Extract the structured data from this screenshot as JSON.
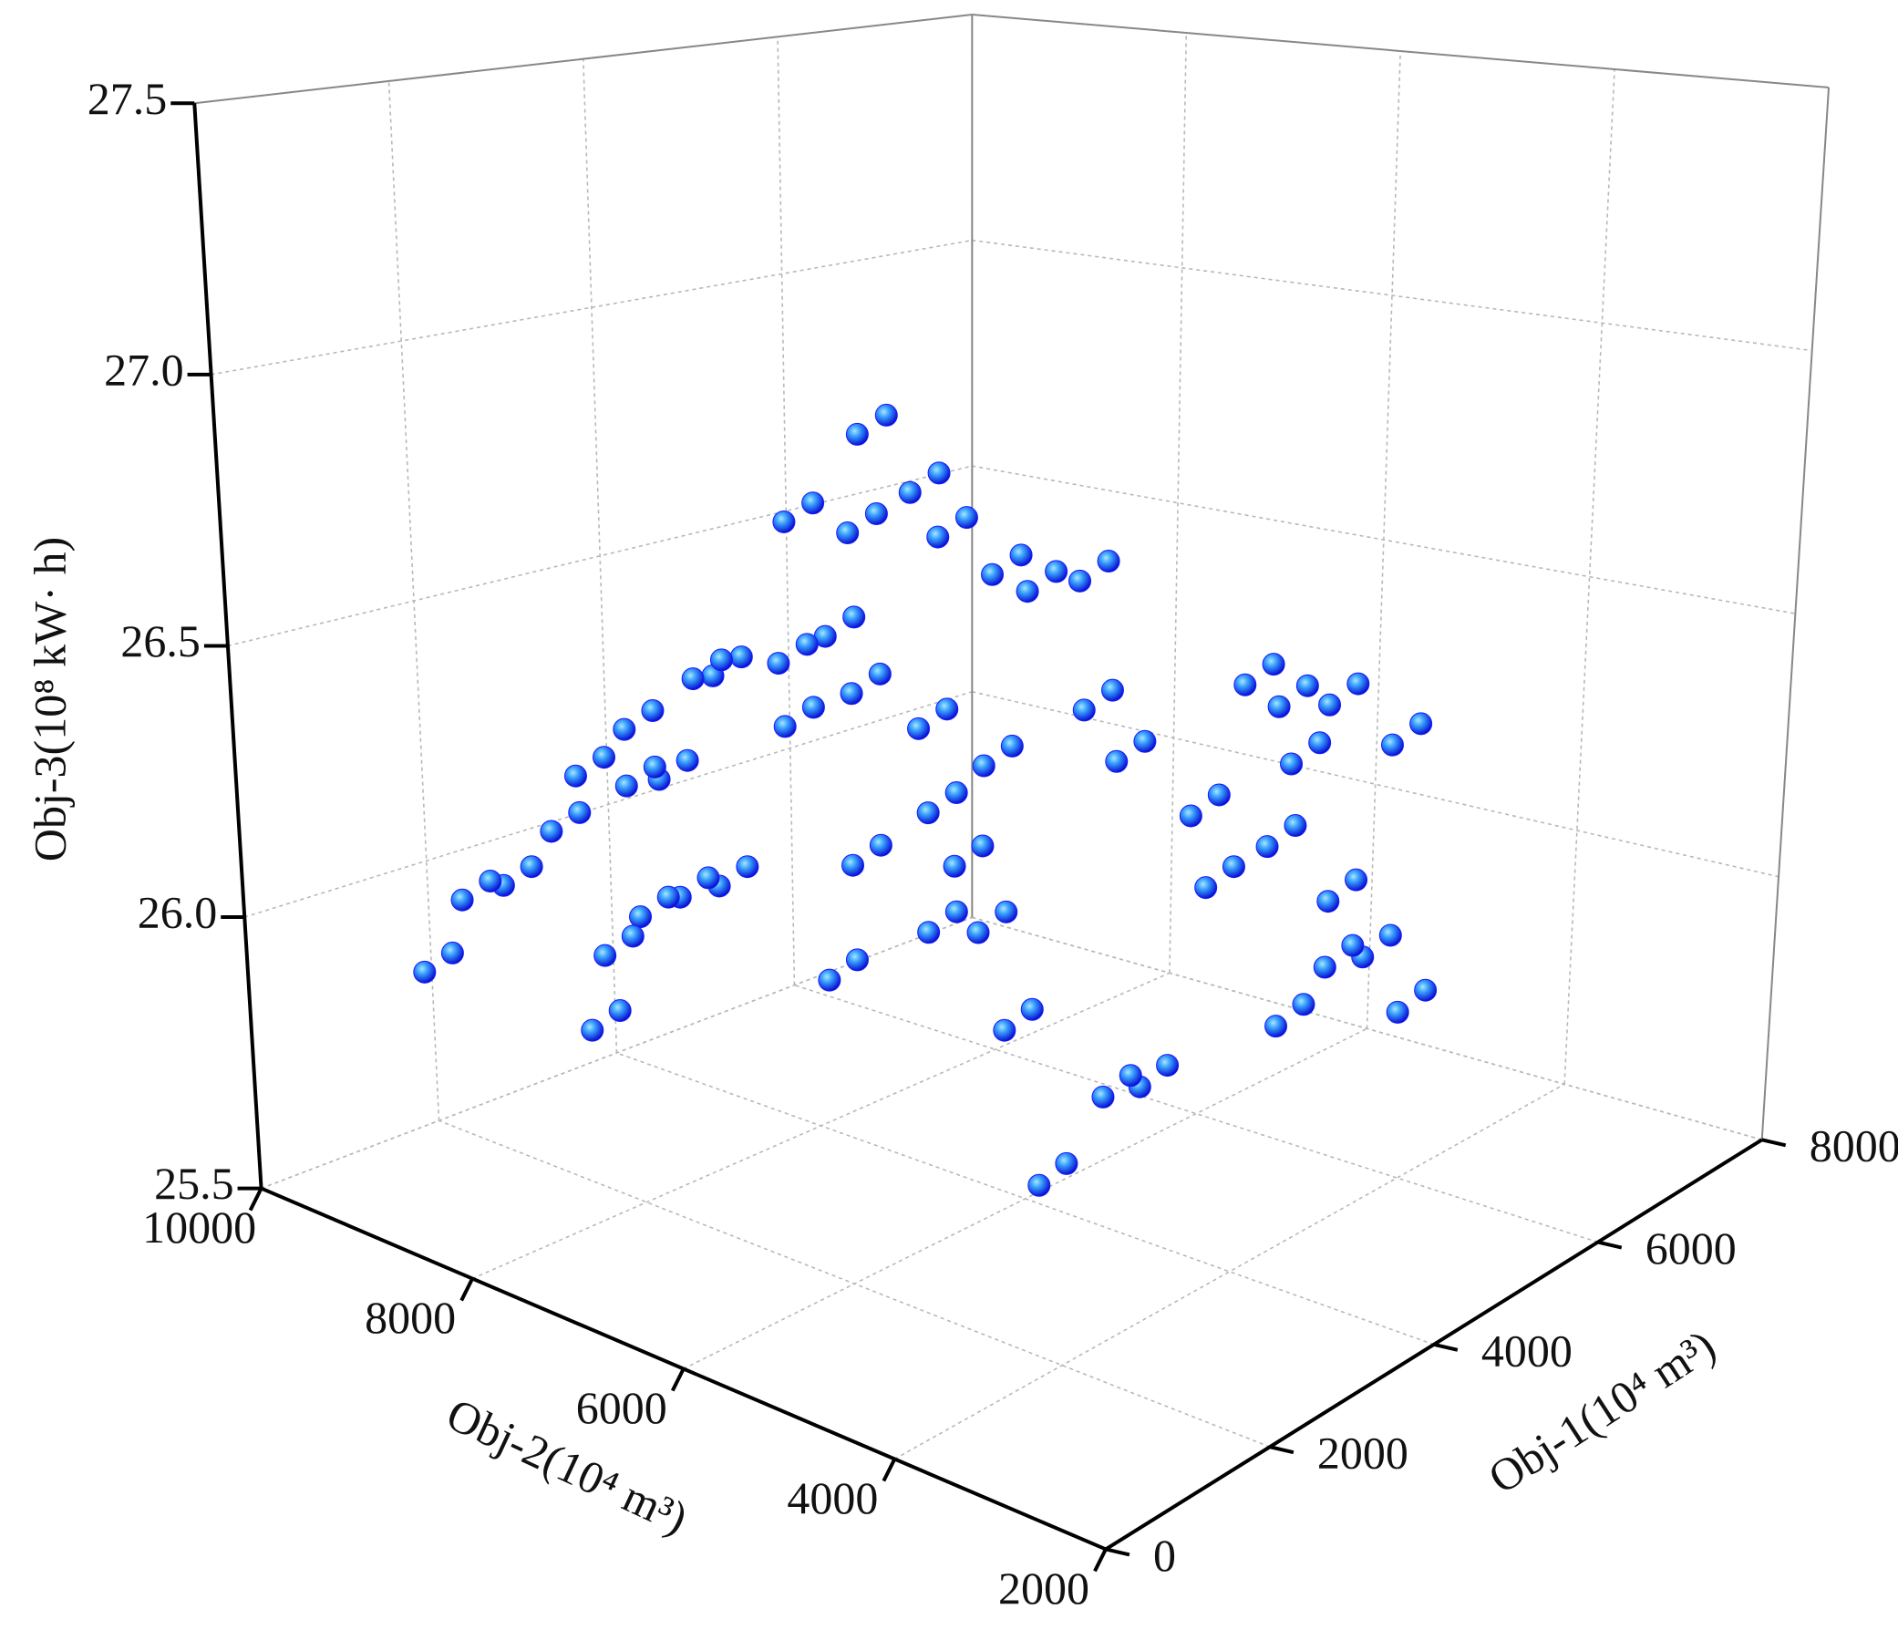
{
  "chart_data": {
    "type": "scatter3d",
    "x_label": "Obj-1(10⁴ m³)",
    "y_label": "Obj-2(10⁴ m³)",
    "z_label": "Obj-3(10⁸ kW· h)",
    "xlim": [
      0,
      8000
    ],
    "ylim": [
      2000,
      10000
    ],
    "zlim": [
      25.5,
      27.5
    ],
    "xticks": [
      0,
      2000,
      4000,
      6000,
      8000
    ],
    "yticks": [
      2000,
      4000,
      6000,
      8000,
      10000
    ],
    "zticks": [
      25.5,
      {
        "value": 26,
        "label": "26.0"
      },
      26.5,
      {
        "value": 27,
        "label": "27.0"
      },
      27.5
    ],
    "grid": true,
    "color": "#1a1aff",
    "x": [
      175,
      670,
      1140,
      1410,
      1570,
      1700,
      1960,
      2160,
      2740,
      2450,
      2340,
      2210,
      2420,
      2790,
      3410,
      3690,
      3240,
      4360,
      4550,
      4550,
      4550,
      5090,
      3950,
      4700,
      4650,
      4970,
      4790,
      5260,
      4520,
      3500,
      3820,
      2740,
      3190,
      2860,
      2620,
      2240,
      2430,
      2760,
      2920,
      1440,
      1380,
      1060,
      1910,
      2300,
      2600,
      2540,
      3230,
      3850,
      1670,
      2000,
      2430,
      5110,
      4300,
      4330,
      375,
      870,
      1340,
      1610,
      1770,
      1900,
      2160,
      2360,
      2940,
      2650,
      2540,
      2410,
      2620,
      2990,
      3610,
      3890,
      3440,
      4560,
      4750,
      4750,
      4750,
      5290,
      4150,
      4900,
      4850,
      5170,
      4990,
      5460,
      4720,
      3700,
      4020,
      2940,
      3390,
      3060,
      2820,
      2440,
      2630,
      2960,
      3120,
      1640,
      1580,
      1260,
      2110,
      2500,
      2800,
      2740,
      3430,
      4050,
      1870,
      2200,
      2630,
      5310,
      4500,
      4530
    ],
    "y": [
      8470,
      8510,
      8520,
      8280,
      8170,
      7810,
      7720,
      7360,
      7240,
      6550,
      6820,
      6020,
      5720,
      5780,
      5800,
      5220,
      5330,
      5740,
      5590,
      4380,
      3580,
      3420,
      4380,
      4270,
      4810,
      3900,
      3770,
      3440,
      4010,
      4830,
      4740,
      4820,
      5520,
      5490,
      5760,
      6390,
      6310,
      5870,
      5760,
      7840,
      7440,
      7660,
      7510,
      7470,
      7070,
      6390,
      6350,
      6260,
      7780,
      7410,
      6310,
      3670,
      3850,
      3750,
      8370,
      8410,
      8420,
      8180,
      8070,
      7710,
      7620,
      7260,
      7140,
      6450,
      6720,
      5920,
      5620,
      5680,
      5700,
      5120,
      5230,
      5640,
      5490,
      4280,
      3480,
      3320,
      4280,
      4170,
      4710,
      3800,
      3670,
      3340,
      3910,
      4730,
      4640,
      4720,
      5420,
      5390,
      5660,
      6290,
      6210,
      5770,
      5660,
      7740,
      7340,
      7560,
      7410,
      7370,
      6970,
      6290,
      6250,
      6160,
      7680,
      7310,
      6210,
      3570,
      3750,
      3650
    ],
    "z": [
      26.0,
      26.1,
      26.1,
      26.2,
      26.3,
      26.4,
      26.3,
      26.5,
      26.5,
      26.6,
      26.8,
      27.0,
      26.9,
      26.8,
      26.7,
      26.7,
      26.7,
      26.4,
      26.3,
      26.5,
      26.5,
      26.4,
      26.3,
      26.2,
      26.1,
      26.1,
      26.0,
      25.9,
      25.9,
      25.8,
      25.8,
      25.7,
      25.9,
      26.1,
      26.1,
      26.0,
      26.2,
      26.3,
      26.2,
      26.0,
      26.1,
      25.9,
      26.1,
      26.1,
      26.4,
      26.5,
      26.4,
      26.3,
      26.3,
      26.5,
      26.8,
      26.0,
      26.5,
      26.4,
      26.03,
      26.13,
      26.13,
      26.23,
      26.33,
      26.43,
      26.33,
      26.53,
      26.53,
      26.63,
      26.83,
      27.03,
      26.93,
      26.83,
      26.73,
      26.73,
      26.73,
      26.43,
      26.33,
      26.53,
      26.53,
      26.43,
      26.33,
      26.23,
      26.13,
      26.13,
      26.03,
      25.93,
      25.93,
      25.83,
      25.83,
      25.73,
      25.93,
      26.13,
      26.13,
      26.03,
      26.23,
      26.33,
      26.23,
      26.03,
      26.13,
      25.93,
      26.13,
      26.13,
      26.43,
      26.53,
      26.43,
      26.33,
      26.33,
      26.53,
      26.83,
      26.03,
      26.53,
      26.43
    ]
  }
}
